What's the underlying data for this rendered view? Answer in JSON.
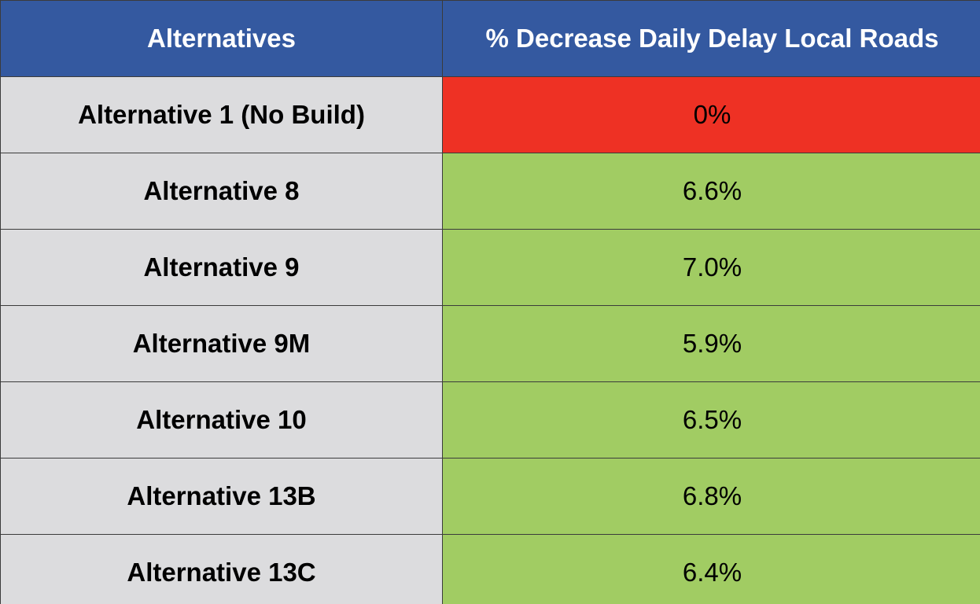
{
  "table": {
    "headers": [
      "Alternatives",
      "% Decrease Daily Delay Local Roads"
    ],
    "rows": [
      {
        "alternative": "Alternative 1 (No Build)",
        "value": "0%"
      },
      {
        "alternative": "Alternative 8",
        "value": "6.6%"
      },
      {
        "alternative": "Alternative 9",
        "value": "7.0%"
      },
      {
        "alternative": "Alternative 9M",
        "value": "5.9%"
      },
      {
        "alternative": "Alternative 10",
        "value": "6.5%"
      },
      {
        "alternative": "Alternative 13B",
        "value": "6.8%"
      },
      {
        "alternative": "Alternative 13C",
        "value": "6.4%"
      }
    ]
  },
  "colors": {
    "header_bg": "#3459a0",
    "label_bg": "#dcdcde",
    "positive_bg": "#a1cc63",
    "no_build_bg": "#ee3124"
  }
}
